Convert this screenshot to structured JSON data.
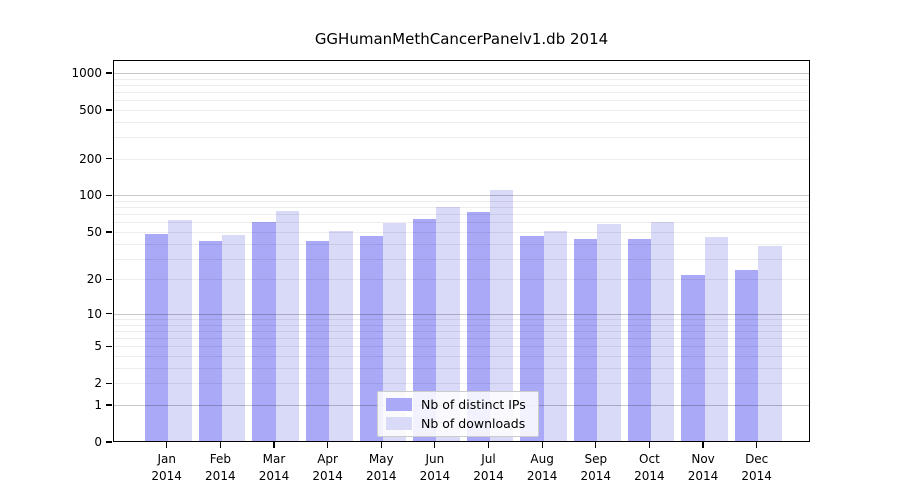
{
  "chart_data": {
    "type": "bar",
    "title": "GGHumanMethCancerPanelv1.db 2014",
    "scale": "log1p (position proportional to log10(value+1), 0 at baseline)",
    "categories": [
      "Jan",
      "Feb",
      "Mar",
      "Apr",
      "May",
      "Jun",
      "Jul",
      "Aug",
      "Sep",
      "Oct",
      "Nov",
      "Dec"
    ],
    "year_label": "2014",
    "series": [
      {
        "name": "Nb of distinct IPs",
        "color": "#A9A9F7",
        "values": [
          48,
          42,
          60,
          42,
          46,
          64,
          73,
          46,
          44,
          44,
          22,
          24
        ]
      },
      {
        "name": "Nb of downloads",
        "color": "#D9D9F8",
        "values": [
          63,
          47,
          75,
          51,
          59,
          81,
          110,
          51,
          58,
          60,
          45,
          38
        ]
      }
    ],
    "ytick_labels": [
      "0",
      "1",
      "2",
      "5",
      "10",
      "20",
      "50",
      "100",
      "200",
      "500",
      "1000"
    ],
    "ytick_values": [
      0,
      1,
      2,
      5,
      10,
      20,
      50,
      100,
      200,
      500,
      1000
    ],
    "ylim": [
      0,
      1000
    ],
    "grid": "on",
    "grid_major_values": [
      1,
      10,
      100,
      1000
    ],
    "grid_minor_values": [
      2,
      3,
      4,
      5,
      6,
      7,
      8,
      9,
      20,
      30,
      40,
      50,
      60,
      70,
      80,
      90,
      200,
      300,
      400,
      500,
      600,
      700,
      800,
      900
    ],
    "legend_position": "bottom-center inside plot",
    "axis_color": "#000000",
    "background_color": "#ffffff"
  }
}
